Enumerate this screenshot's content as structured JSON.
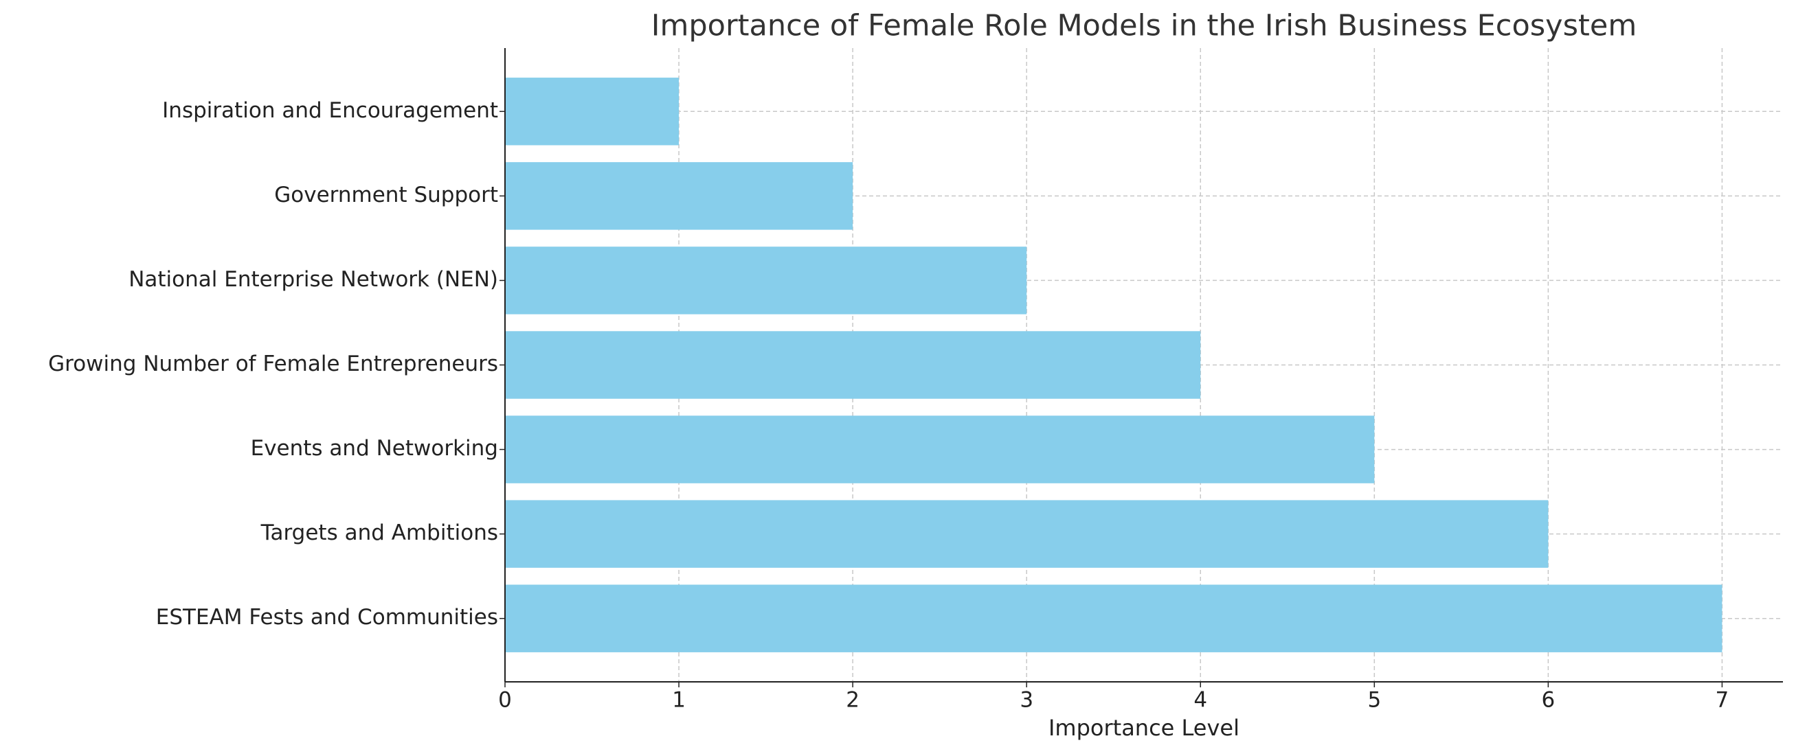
{
  "chart_data": {
    "type": "barh",
    "title": "Importance of Female Role Models in the Irish Business Ecosystem",
    "xlabel": "Importance Level",
    "categories": [
      "Inspiration and Encouragement",
      "Government Support",
      "National Enterprise Network (NEN)",
      "Growing Number of Female Entrepreneurs",
      "Events and Networking",
      "Targets and Ambitions",
      "ESTEAM Fests and Communities"
    ],
    "values": [
      1,
      2,
      3,
      4,
      5,
      6,
      7
    ],
    "color": "#87ceeb",
    "xlim": [
      0,
      7.35
    ],
    "xticks": [
      0,
      1,
      2,
      3,
      4,
      5,
      6,
      7
    ],
    "grid": true
  }
}
